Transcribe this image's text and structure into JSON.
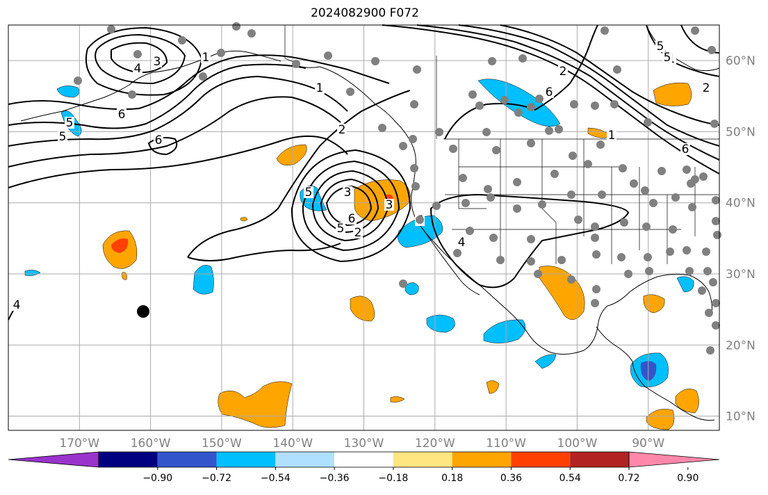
{
  "title": "2024082900 F072",
  "map": {
    "projection": "plate-carree",
    "lon_range": [
      -180,
      -80
    ],
    "lat_range": [
      8,
      65
    ],
    "lon_ticks": [
      "170°W",
      "160°W",
      "150°W",
      "140°W",
      "130°W",
      "120°W",
      "110°W",
      "100°W",
      "90°W"
    ],
    "lat_ticks": [
      "10°N",
      "20°N",
      "30°N",
      "40°N",
      "50°N",
      "60°N"
    ],
    "grid": true,
    "contour_color": "#000000",
    "contour_labels": [
      "3",
      "4",
      "6",
      "5",
      "6",
      "5",
      "3",
      "6",
      "5",
      "2",
      "1",
      "2",
      "5",
      "6",
      "4",
      "3",
      "1",
      "2",
      "2",
      "5",
      "6",
      "1",
      "5",
      "6",
      "4",
      "1"
    ],
    "station_marker_color": "#808080",
    "highlight_marker_color": "#000000"
  },
  "colorbar": {
    "labels": [
      "−0.90",
      "−0.72",
      "−0.54",
      "−0.36",
      "−0.18",
      "0.18",
      "0.36",
      "0.54",
      "0.72",
      "0.90"
    ],
    "colors": [
      "#9933cc",
      "#000080",
      "#3355cc",
      "#00bfff",
      "#b0e0ff",
      "#ffffff",
      "#ffe680",
      "#ffa500",
      "#ff4000",
      "#b22222",
      "#ff88aa"
    ],
    "extend": "both"
  }
}
